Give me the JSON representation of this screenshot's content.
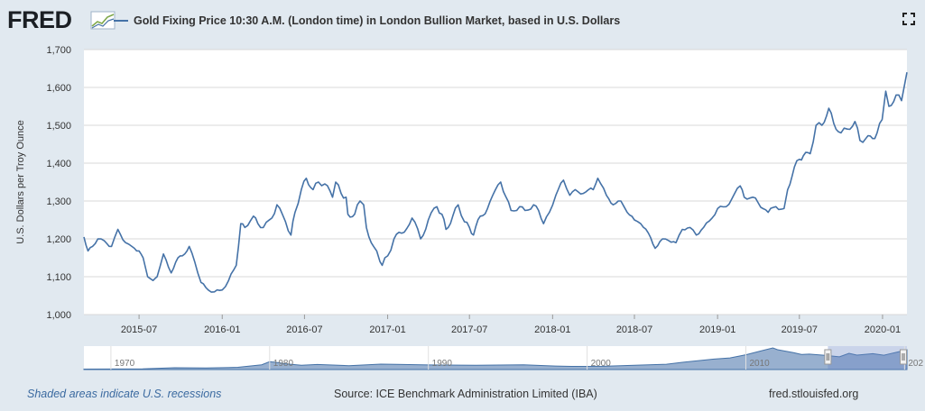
{
  "header": {
    "logo_text": "FRED",
    "legend_label": "Gold Fixing Price 10:30 A.M. (London time) in London Bullion Market, based in U.S. Dollars"
  },
  "footer": {
    "recessions_note": "Shaded areas indicate U.S. recessions",
    "source": "Source: ICE Benchmark Administration Limited (IBA)",
    "url": "fred.stlouisfed.org"
  },
  "colors": {
    "line": "#4572a7",
    "background": "#e1e9f0",
    "plot": "#ffffff",
    "grid": "#d8d8d8",
    "navigator_fill": "#98b0cf"
  },
  "chart_data": {
    "type": "line",
    "title": "",
    "xlabel": "",
    "ylabel": "U.S. Dollars per Troy Ounce",
    "ylim": [
      1000,
      1700
    ],
    "xlim": [
      "2015-03-01",
      "2020-02-24"
    ],
    "yticks": [
      "1,000",
      "1,100",
      "1,200",
      "1,300",
      "1,400",
      "1,500",
      "1,600",
      "1,700"
    ],
    "yticks_values": [
      1000,
      1100,
      1200,
      1300,
      1400,
      1500,
      1600,
      1700
    ],
    "xticks": [
      {
        "label": "2015-07",
        "date": "2015-07-01"
      },
      {
        "label": "2016-01",
        "date": "2016-01-01"
      },
      {
        "label": "2016-07",
        "date": "2016-07-01"
      },
      {
        "label": "2017-01",
        "date": "2017-01-01"
      },
      {
        "label": "2017-07",
        "date": "2017-07-01"
      },
      {
        "label": "2018-01",
        "date": "2018-01-01"
      },
      {
        "label": "2018-07",
        "date": "2018-07-01"
      },
      {
        "label": "2019-01",
        "date": "2019-01-01"
      },
      {
        "label": "2019-07",
        "date": "2019-07-01"
      },
      {
        "label": "2020-01",
        "date": "2020-01-01"
      }
    ],
    "grid": true,
    "legend": "top-left",
    "series": [
      {
        "name": "Gold Fixing Price 10:30 A.M. (London time) in London Bullion Market, based in U.S. Dollars",
        "points": [
          [
            "2015-03-01",
            1205
          ],
          [
            "2015-03-10",
            1168
          ],
          [
            "2015-03-20",
            1180
          ],
          [
            "2015-04-01",
            1200
          ],
          [
            "2015-04-15",
            1195
          ],
          [
            "2015-05-01",
            1180
          ],
          [
            "2015-05-15",
            1225
          ],
          [
            "2015-06-01",
            1190
          ],
          [
            "2015-06-15",
            1180
          ],
          [
            "2015-07-01",
            1168
          ],
          [
            "2015-07-10",
            1150
          ],
          [
            "2015-07-20",
            1100
          ],
          [
            "2015-08-01",
            1090
          ],
          [
            "2015-08-10",
            1100
          ],
          [
            "2015-08-24",
            1160
          ],
          [
            "2015-09-10",
            1110
          ],
          [
            "2015-09-25",
            1150
          ],
          [
            "2015-10-10",
            1160
          ],
          [
            "2015-10-20",
            1180
          ],
          [
            "2015-11-01",
            1140
          ],
          [
            "2015-11-15",
            1085
          ],
          [
            "2015-12-01",
            1065
          ],
          [
            "2015-12-15",
            1060
          ],
          [
            "2016-01-01",
            1065
          ],
          [
            "2016-01-15",
            1090
          ],
          [
            "2016-02-01",
            1130
          ],
          [
            "2016-02-11",
            1240
          ],
          [
            "2016-02-20",
            1230
          ],
          [
            "2016-03-10",
            1260
          ],
          [
            "2016-03-20",
            1240
          ],
          [
            "2016-04-01",
            1230
          ],
          [
            "2016-04-20",
            1255
          ],
          [
            "2016-05-01",
            1290
          ],
          [
            "2016-05-20",
            1245
          ],
          [
            "2016-06-01",
            1210
          ],
          [
            "2016-06-10",
            1270
          ],
          [
            "2016-06-24",
            1330
          ],
          [
            "2016-07-05",
            1360
          ],
          [
            "2016-07-20",
            1330
          ],
          [
            "2016-08-01",
            1350
          ],
          [
            "2016-08-15",
            1345
          ],
          [
            "2016-09-01",
            1310
          ],
          [
            "2016-09-08",
            1350
          ],
          [
            "2016-09-20",
            1320
          ],
          [
            "2016-10-01",
            1310
          ],
          [
            "2016-10-05",
            1265
          ],
          [
            "2016-10-20",
            1265
          ],
          [
            "2016-11-01",
            1300
          ],
          [
            "2016-11-09",
            1290
          ],
          [
            "2016-11-15",
            1230
          ],
          [
            "2016-12-01",
            1180
          ],
          [
            "2016-12-15",
            1140
          ],
          [
            "2016-12-20",
            1130
          ],
          [
            "2017-01-01",
            1155
          ],
          [
            "2017-01-15",
            1200
          ],
          [
            "2017-02-01",
            1215
          ],
          [
            "2017-02-24",
            1255
          ],
          [
            "2017-03-15",
            1200
          ],
          [
            "2017-04-01",
            1250
          ],
          [
            "2017-04-20",
            1285
          ],
          [
            "2017-05-01",
            1265
          ],
          [
            "2017-05-10",
            1225
          ],
          [
            "2017-05-25",
            1260
          ],
          [
            "2017-06-06",
            1290
          ],
          [
            "2017-06-20",
            1245
          ],
          [
            "2017-07-01",
            1230
          ],
          [
            "2017-07-10",
            1210
          ],
          [
            "2017-07-25",
            1260
          ],
          [
            "2017-08-10",
            1280
          ],
          [
            "2017-09-08",
            1350
          ],
          [
            "2017-09-20",
            1310
          ],
          [
            "2017-10-01",
            1275
          ],
          [
            "2017-10-20",
            1285
          ],
          [
            "2017-11-01",
            1275
          ],
          [
            "2017-11-20",
            1290
          ],
          [
            "2017-12-01",
            1275
          ],
          [
            "2017-12-12",
            1240
          ],
          [
            "2017-12-25",
            1270
          ],
          [
            "2018-01-08",
            1315
          ],
          [
            "2018-01-25",
            1355
          ],
          [
            "2018-02-08",
            1315
          ],
          [
            "2018-02-20",
            1330
          ],
          [
            "2018-03-10",
            1320
          ],
          [
            "2018-04-01",
            1330
          ],
          [
            "2018-04-11",
            1360
          ],
          [
            "2018-04-30",
            1315
          ],
          [
            "2018-05-15",
            1290
          ],
          [
            "2018-06-01",
            1300
          ],
          [
            "2018-06-15",
            1270
          ],
          [
            "2018-07-01",
            1250
          ],
          [
            "2018-07-15",
            1240
          ],
          [
            "2018-08-01",
            1215
          ],
          [
            "2018-08-16",
            1175
          ],
          [
            "2018-09-01",
            1200
          ],
          [
            "2018-09-15",
            1195
          ],
          [
            "2018-10-01",
            1190
          ],
          [
            "2018-10-15",
            1225
          ],
          [
            "2018-11-01",
            1230
          ],
          [
            "2018-11-15",
            1210
          ],
          [
            "2018-12-01",
            1230
          ],
          [
            "2018-12-20",
            1255
          ],
          [
            "2019-01-01",
            1280
          ],
          [
            "2019-01-20",
            1285
          ],
          [
            "2019-02-20",
            1340
          ],
          [
            "2019-03-01",
            1310
          ],
          [
            "2019-03-20",
            1310
          ],
          [
            "2019-04-01",
            1295
          ],
          [
            "2019-04-23",
            1270
          ],
          [
            "2019-05-10",
            1285
          ],
          [
            "2019-05-28",
            1280
          ],
          [
            "2019-06-05",
            1330
          ],
          [
            "2019-06-20",
            1390
          ],
          [
            "2019-07-01",
            1410
          ],
          [
            "2019-07-10",
            1420
          ],
          [
            "2019-07-25",
            1425
          ],
          [
            "2019-08-07",
            1500
          ],
          [
            "2019-08-20",
            1500
          ],
          [
            "2019-09-04",
            1545
          ],
          [
            "2019-09-15",
            1505
          ],
          [
            "2019-10-01",
            1480
          ],
          [
            "2019-10-15",
            1490
          ],
          [
            "2019-11-01",
            1510
          ],
          [
            "2019-11-12",
            1460
          ],
          [
            "2019-11-25",
            1465
          ],
          [
            "2019-12-10",
            1465
          ],
          [
            "2019-12-20",
            1480
          ],
          [
            "2019-12-31",
            1515
          ],
          [
            "2020-01-08",
            1590
          ],
          [
            "2020-01-15",
            1550
          ],
          [
            "2020-01-31",
            1580
          ],
          [
            "2020-02-12",
            1565
          ],
          [
            "2020-02-20",
            1615
          ],
          [
            "2020-02-24",
            1640
          ]
        ]
      }
    ]
  },
  "navigator": {
    "ticks": [
      {
        "label": "1970",
        "year": 1970
      },
      {
        "label": "1980",
        "year": 1980
      },
      {
        "label": "1990",
        "year": 1990
      },
      {
        "label": "2000",
        "year": 2000
      },
      {
        "label": "2010",
        "year": 2010
      },
      {
        "label": "202",
        "year": 2020
      }
    ],
    "range": [
      1968.3,
      2020.15
    ],
    "selection": [
      2015.17,
      2020.15
    ],
    "ylim": [
      0,
      1800
    ],
    "series": [
      [
        1968.3,
        40
      ],
      [
        1972,
        60
      ],
      [
        1974,
        150
      ],
      [
        1976,
        125
      ],
      [
        1978,
        190
      ],
      [
        1979.5,
        400
      ],
      [
        1980,
        650
      ],
      [
        1980.6,
        560
      ],
      [
        1981,
        480
      ],
      [
        1982,
        350
      ],
      [
        1983,
        420
      ],
      [
        1985,
        320
      ],
      [
        1987,
        450
      ],
      [
        1988,
        430
      ],
      [
        1990,
        385
      ],
      [
        1993,
        360
      ],
      [
        1996,
        390
      ],
      [
        1998,
        290
      ],
      [
        1999,
        260
      ],
      [
        2001,
        270
      ],
      [
        2003,
        360
      ],
      [
        2005,
        440
      ],
      [
        2006,
        600
      ],
      [
        2008,
        870
      ],
      [
        2009,
        970
      ],
      [
        2010,
        1230
      ],
      [
        2011,
        1570
      ],
      [
        2011.7,
        1800
      ],
      [
        2012,
        1650
      ],
      [
        2013,
        1400
      ],
      [
        2013.5,
        1250
      ],
      [
        2014,
        1280
      ],
      [
        2015,
        1180
      ],
      [
        2015.9,
        1060
      ],
      [
        2016.5,
        1350
      ],
      [
        2017,
        1200
      ],
      [
        2018,
        1320
      ],
      [
        2018.7,
        1190
      ],
      [
        2019,
        1290
      ],
      [
        2019.7,
        1500
      ],
      [
        2020,
        1560
      ],
      [
        2020.15,
        1640
      ]
    ]
  }
}
